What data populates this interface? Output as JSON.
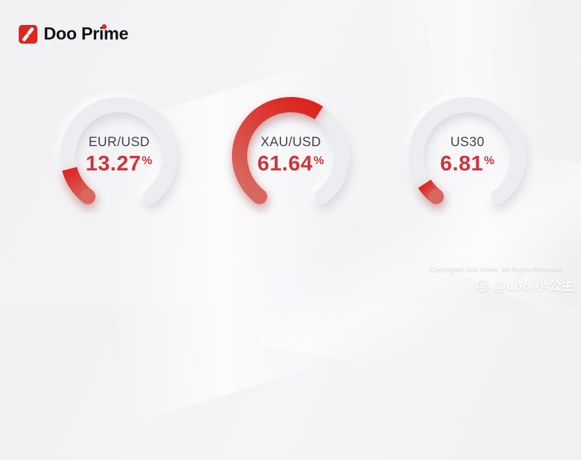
{
  "brand": {
    "name": "Doo Prime"
  },
  "gauges": [
    {
      "label": "EUR/USD",
      "value": "13.27",
      "unit": "%"
    },
    {
      "label": "XAU/USD",
      "value": "61.64",
      "unit": "%"
    },
    {
      "label": "US30",
      "value": "6.81",
      "unit": "%"
    }
  ],
  "chart_data": {
    "type": "gauge",
    "categories": [
      "EUR/USD",
      "XAU/USD",
      "US30"
    ],
    "values": [
      13.27,
      61.64,
      6.81
    ],
    "unit": "%",
    "value_range": [
      0,
      100
    ],
    "arc_start_deg": 217.5,
    "arc_sweep_deg": 285,
    "colors": {
      "fill_start": "#d8685f",
      "fill_end": "#dd2420",
      "track": "#ebedf0",
      "value_text": "#d0333a",
      "label_text": "#3f444b",
      "brand_red": "#e0251e"
    }
  },
  "footer": {
    "copyright": "Copyright© Doo Prime. All Rights Reserved",
    "watermark_handle": "@doo 小公主"
  }
}
